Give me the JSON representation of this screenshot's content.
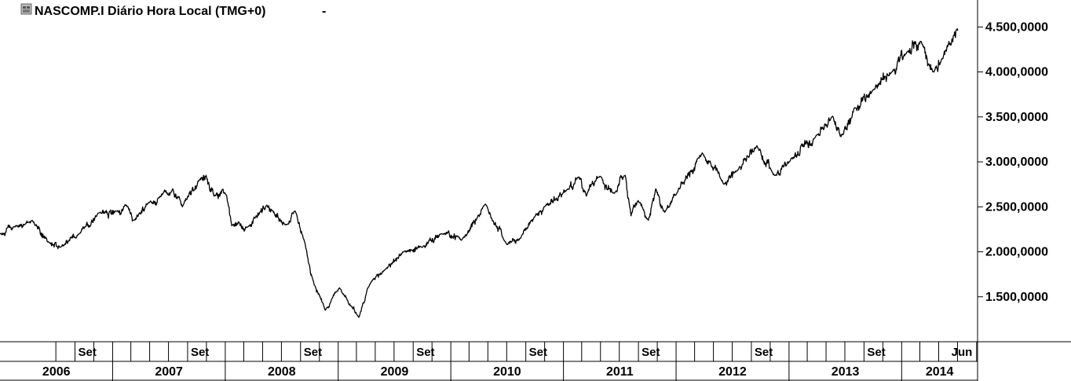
{
  "header": {
    "title": "NASCOMP.I Diário Hora Local (TMG+0)",
    "dropdown_glyph": "-",
    "icon": "chart-window-icon"
  },
  "colors": {
    "background": "#ffffff",
    "line": "#000000",
    "grid": "#000000",
    "icon_gray": "#888888"
  },
  "chart_data": {
    "type": "line",
    "title": "NASCOMP.I Diário Hora Local (TMG+0)",
    "xlabel": "",
    "ylabel": "",
    "xlim": [
      "2006-01-01",
      "2014-09-04"
    ],
    "ylim": [
      1000,
      4800
    ],
    "grid": false,
    "y_ticks": [
      {
        "value": 1500,
        "label": "1.500,0000"
      },
      {
        "value": 2000,
        "label": "2.000,0000"
      },
      {
        "value": 2500,
        "label": "2.500,0000"
      },
      {
        "value": 3000,
        "label": "3.000,0000"
      },
      {
        "value": 3500,
        "label": "3.500,0000"
      },
      {
        "value": 4000,
        "label": "4.000,0000"
      },
      {
        "value": 4500,
        "label": "4.500,0000"
      }
    ],
    "month_labels": [
      {
        "date": "2006-09-01",
        "label": "Set"
      },
      {
        "date": "2007-09-01",
        "label": "Set"
      },
      {
        "date": "2008-09-01",
        "label": "Set"
      },
      {
        "date": "2009-09-01",
        "label": "Set"
      },
      {
        "date": "2010-09-01",
        "label": "Set"
      },
      {
        "date": "2011-09-01",
        "label": "Set"
      },
      {
        "date": "2012-09-01",
        "label": "Set"
      },
      {
        "date": "2013-09-01",
        "label": "Set"
      },
      {
        "date": "2014-06-01",
        "label": "Jun"
      }
    ],
    "month_ticks": [
      "2006-07-01",
      "2006-09-01",
      "2006-11-01",
      "2007-01-01",
      "2007-03-01",
      "2007-05-01",
      "2007-07-01",
      "2007-09-01",
      "2007-11-01",
      "2008-01-01",
      "2008-03-01",
      "2008-05-01",
      "2008-07-01",
      "2008-09-01",
      "2008-11-01",
      "2009-01-01",
      "2009-03-01",
      "2009-05-01",
      "2009-07-01",
      "2009-09-01",
      "2009-11-01",
      "2010-01-01",
      "2010-03-01",
      "2010-05-01",
      "2010-07-01",
      "2010-09-01",
      "2010-11-01",
      "2011-01-01",
      "2011-03-01",
      "2011-05-01",
      "2011-07-01",
      "2011-09-01",
      "2011-11-01",
      "2012-01-01",
      "2012-03-01",
      "2012-05-01",
      "2012-07-01",
      "2012-09-01",
      "2012-11-01",
      "2013-01-01",
      "2013-03-01",
      "2013-05-01",
      "2013-07-01",
      "2013-09-01",
      "2013-11-01",
      "2014-01-01",
      "2014-03-01",
      "2014-05-01",
      "2014-07-01",
      "2014-09-01"
    ],
    "year_labels": [
      {
        "year": "2006",
        "start": "2006-01-01"
      },
      {
        "year": "2007",
        "start": "2007-01-01"
      },
      {
        "year": "2008",
        "start": "2008-01-01"
      },
      {
        "year": "2009",
        "start": "2009-01-01"
      },
      {
        "year": "2010",
        "start": "2010-01-01"
      },
      {
        "year": "2011",
        "start": "2011-01-01"
      },
      {
        "year": "2012",
        "start": "2012-01-01"
      },
      {
        "year": "2013",
        "start": "2013-01-01"
      },
      {
        "year": "2014",
        "start": "2014-01-01"
      }
    ],
    "series": [
      {
        "x": [
          "2006-01-01",
          "2006-02-15",
          "2006-04-15",
          "2006-06-10",
          "2006-07-15",
          "2006-09-15",
          "2006-11-15",
          "2007-01-15",
          "2007-02-20",
          "2007-03-10",
          "2007-05-01",
          "2007-06-01",
          "2007-07-15",
          "2007-08-15",
          "2007-10-10",
          "2007-10-31",
          "2007-11-25",
          "2008-01-01",
          "2008-01-22",
          "2008-03-15",
          "2008-05-15",
          "2008-06-01",
          "2008-07-15",
          "2008-08-15",
          "2008-09-15",
          "2008-10-10",
          "2008-11-20",
          "2009-01-05",
          "2009-03-09",
          "2009-04-15",
          "2009-06-01",
          "2009-08-01",
          "2009-10-01",
          "2009-12-01",
          "2010-02-05",
          "2010-04-23",
          "2010-07-02",
          "2010-08-15",
          "2010-09-30",
          "2010-11-01",
          "2011-01-15",
          "2011-02-18",
          "2011-03-16",
          "2011-04-29",
          "2011-06-15",
          "2011-07-20",
          "2011-08-08",
          "2011-08-31",
          "2011-10-03",
          "2011-10-27",
          "2011-11-25",
          "2012-01-03",
          "2012-03-26",
          "2012-06-04",
          "2012-07-15",
          "2012-09-19",
          "2012-11-15",
          "2013-01-02",
          "2013-04-01",
          "2013-05-20",
          "2013-06-24",
          "2013-08-01",
          "2013-09-30",
          "2013-11-30",
          "2014-01-15",
          "2014-03-05",
          "2014-04-15",
          "2014-05-15",
          "2014-06-10",
          "2014-07-03"
        ],
        "y": [
          2200,
          2280,
          2350,
          2100,
          2050,
          2200,
          2430,
          2450,
          2500,
          2350,
          2550,
          2600,
          2700,
          2500,
          2800,
          2850,
          2620,
          2650,
          2290,
          2280,
          2520,
          2460,
          2300,
          2450,
          2100,
          1700,
          1350,
          1600,
          1270,
          1650,
          1800,
          2000,
          2050,
          2200,
          2130,
          2530,
          2080,
          2150,
          2390,
          2500,
          2700,
          2830,
          2620,
          2840,
          2650,
          2850,
          2400,
          2570,
          2350,
          2700,
          2440,
          2650,
          3100,
          2750,
          2900,
          3180,
          2850,
          3000,
          3300,
          3500,
          3300,
          3600,
          3800,
          4000,
          4200,
          4340,
          4000,
          4150,
          4300,
          4460
        ]
      }
    ]
  }
}
